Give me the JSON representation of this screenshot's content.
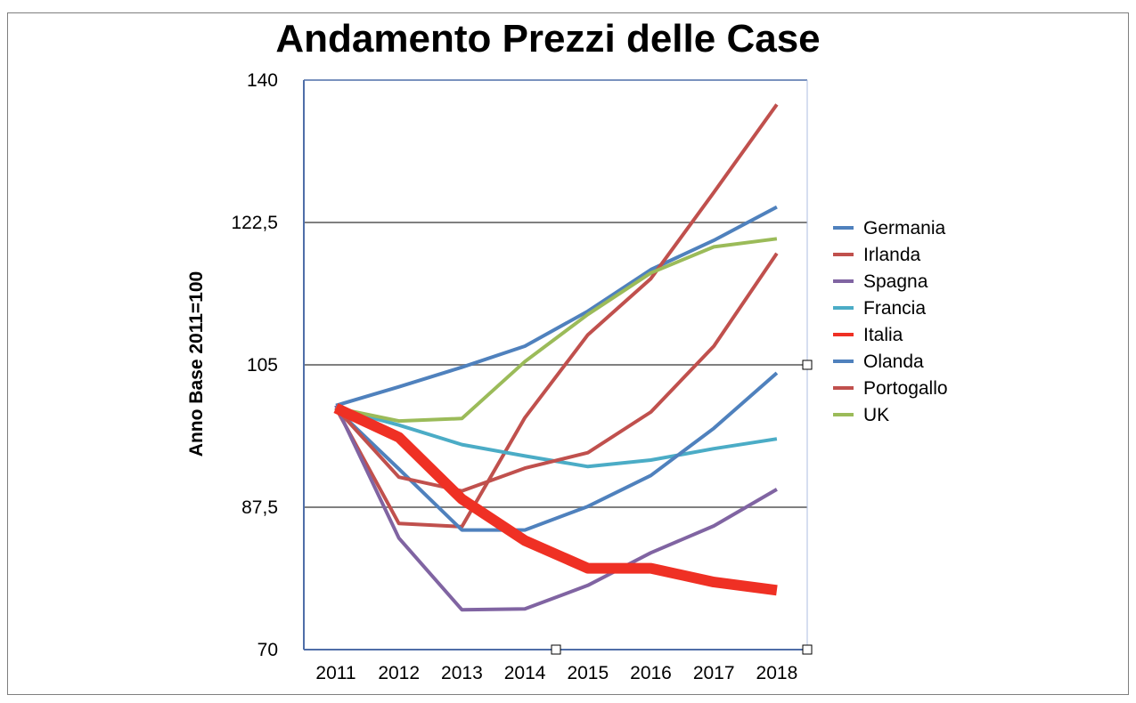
{
  "chart_data": {
    "type": "line",
    "title": "Andamento Prezzi delle Case",
    "xlabel": "",
    "ylabel": "Anno Base 2011=100",
    "categories": [
      "2011",
      "2012",
      "2013",
      "2014",
      "2015",
      "2016",
      "2017",
      "2018"
    ],
    "ylim": [
      70,
      140
    ],
    "yticks": [
      70,
      87.5,
      105,
      122.5,
      140
    ],
    "ytick_labels": [
      "70",
      "87,5",
      "105",
      "122,5",
      "140"
    ],
    "grid": "horizontal",
    "legend_position": "right",
    "series": [
      {
        "name": "Germania",
        "color": "#4f81bd",
        "width": 4,
        "values": [
          100,
          102.3,
          104.7,
          107.3,
          111.6,
          116.7,
          120.3,
          124.4
        ]
      },
      {
        "name": "Irlanda",
        "color": "#c0504d",
        "width": 4,
        "values": [
          99.7,
          85.5,
          85.1,
          98.5,
          108.7,
          115.6,
          126.2,
          137
        ]
      },
      {
        "name": "Spagna",
        "color": "#8064a2",
        "width": 4,
        "values": [
          100,
          83.7,
          74.9,
          75,
          77.9,
          81.9,
          85.2,
          89.7
        ]
      },
      {
        "name": "Francia",
        "color": "#4bacc6",
        "width": 4,
        "values": [
          99.7,
          97.6,
          95.2,
          93.8,
          92.5,
          93.3,
          94.7,
          95.9
        ]
      },
      {
        "name": "Italia",
        "color": "#ef3024",
        "width": 12,
        "values": [
          99.7,
          96.1,
          88.5,
          83.4,
          80,
          80,
          78.3,
          77.3
        ]
      },
      {
        "name": "Olanda",
        "color": "#4f81bd",
        "width": 4,
        "values": [
          99.6,
          92.2,
          84.7,
          84.7,
          87.6,
          91.4,
          97.2,
          104
        ]
      },
      {
        "name": "Portogallo",
        "color": "#c0504d",
        "width": 4,
        "values": [
          99.7,
          91.2,
          89.5,
          92.3,
          94.2,
          99.2,
          107.3,
          118.7
        ]
      },
      {
        "name": "UK",
        "color": "#9bbb59",
        "width": 4,
        "values": [
          99.7,
          98.1,
          98.4,
          105.4,
          111.2,
          116.3,
          119.5,
          120.5
        ]
      }
    ]
  }
}
